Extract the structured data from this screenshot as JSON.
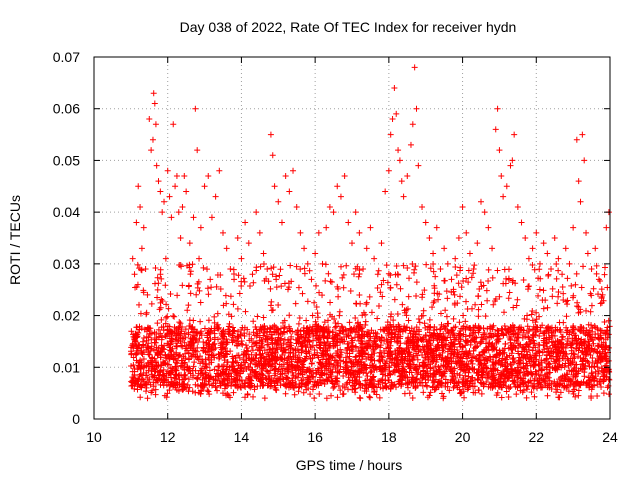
{
  "chart_data": {
    "type": "scatter",
    "title": "Day 038 of 2022, Rate Of TEC Index for receiver hydn",
    "xlabel": "GPS time / hours",
    "ylabel": "ROTI / TECUs",
    "xlim": [
      10,
      24
    ],
    "ylim": [
      0,
      0.07
    ],
    "xticks": [
      10,
      12,
      14,
      16,
      18,
      20,
      22,
      24
    ],
    "yticks": [
      0,
      0.01,
      0.02,
      0.03,
      0.04,
      0.05,
      0.06,
      0.07
    ],
    "xtick_labels": [
      "10",
      "12",
      "14",
      "16",
      "18",
      "20",
      "22",
      "24"
    ],
    "ytick_labels": [
      "0",
      "0.01",
      "0.02",
      "0.03",
      "0.04",
      "0.05",
      "0.06",
      "0.07"
    ],
    "grid": true,
    "marker": "plus",
    "color": "#ff0000",
    "series": [
      {
        "points": [
          [
            11.05,
            0.031
          ],
          [
            11.1,
            0.028
          ],
          [
            11.15,
            0.038
          ],
          [
            11.2,
            0.045
          ],
          [
            11.25,
            0.041
          ],
          [
            11.3,
            0.033
          ],
          [
            11.35,
            0.037
          ],
          [
            11.4,
            0.029
          ],
          [
            11.45,
            0.024
          ],
          [
            11.5,
            0.058
          ],
          [
            11.55,
            0.052
          ],
          [
            11.6,
            0.054
          ],
          [
            11.62,
            0.063
          ],
          [
            11.65,
            0.061
          ],
          [
            11.68,
            0.057
          ],
          [
            11.7,
            0.049
          ],
          [
            11.75,
            0.046
          ],
          [
            11.8,
            0.044
          ],
          [
            11.85,
            0.04
          ],
          [
            11.9,
            0.042
          ],
          [
            11.95,
            0.031
          ],
          [
            12.0,
            0.048
          ],
          [
            12.05,
            0.043
          ],
          [
            12.1,
            0.039
          ],
          [
            12.15,
            0.057
          ],
          [
            12.2,
            0.045
          ],
          [
            12.25,
            0.047
          ],
          [
            12.3,
            0.04
          ],
          [
            12.35,
            0.035
          ],
          [
            12.4,
            0.041
          ],
          [
            12.45,
            0.047
          ],
          [
            12.5,
            0.044
          ],
          [
            12.6,
            0.034
          ],
          [
            12.7,
            0.039
          ],
          [
            12.75,
            0.06
          ],
          [
            12.8,
            0.052
          ],
          [
            12.85,
            0.031
          ],
          [
            12.9,
            0.037
          ],
          [
            13.0,
            0.045
          ],
          [
            13.1,
            0.047
          ],
          [
            13.2,
            0.039
          ],
          [
            13.3,
            0.043
          ],
          [
            13.4,
            0.048
          ],
          [
            13.5,
            0.036
          ],
          [
            13.6,
            0.033
          ],
          [
            13.7,
            0.029
          ],
          [
            13.8,
            0.027
          ],
          [
            13.9,
            0.035
          ],
          [
            14.0,
            0.031
          ],
          [
            14.1,
            0.038
          ],
          [
            14.2,
            0.034
          ],
          [
            14.3,
            0.028
          ],
          [
            14.4,
            0.04
          ],
          [
            14.5,
            0.036
          ],
          [
            14.6,
            0.032
          ],
          [
            14.7,
            0.029
          ],
          [
            14.8,
            0.055
          ],
          [
            14.85,
            0.051
          ],
          [
            14.9,
            0.045
          ],
          [
            15.0,
            0.042
          ],
          [
            15.1,
            0.038
          ],
          [
            15.2,
            0.047
          ],
          [
            15.3,
            0.044
          ],
          [
            15.4,
            0.048
          ],
          [
            15.5,
            0.041
          ],
          [
            15.6,
            0.036
          ],
          [
            15.7,
            0.033
          ],
          [
            15.8,
            0.03
          ],
          [
            15.9,
            0.027
          ],
          [
            16.0,
            0.032
          ],
          [
            16.1,
            0.036
          ],
          [
            16.2,
            0.03
          ],
          [
            16.3,
            0.037
          ],
          [
            16.4,
            0.041
          ],
          [
            16.5,
            0.04
          ],
          [
            16.6,
            0.045
          ],
          [
            16.7,
            0.043
          ],
          [
            16.8,
            0.047
          ],
          [
            16.9,
            0.038
          ],
          [
            17.0,
            0.034
          ],
          [
            17.1,
            0.04
          ],
          [
            17.2,
            0.036
          ],
          [
            17.3,
            0.029
          ],
          [
            17.4,
            0.033
          ],
          [
            17.5,
            0.037
          ],
          [
            17.6,
            0.031
          ],
          [
            17.7,
            0.028
          ],
          [
            17.8,
            0.034
          ],
          [
            17.9,
            0.044
          ],
          [
            18.0,
            0.048
          ],
          [
            18.05,
            0.055
          ],
          [
            18.1,
            0.058
          ],
          [
            18.15,
            0.064
          ],
          [
            18.2,
            0.059
          ],
          [
            18.25,
            0.052
          ],
          [
            18.3,
            0.05
          ],
          [
            18.35,
            0.046
          ],
          [
            18.4,
            0.043
          ],
          [
            18.5,
            0.047
          ],
          [
            18.6,
            0.053
          ],
          [
            18.65,
            0.057
          ],
          [
            18.7,
            0.068
          ],
          [
            18.75,
            0.06
          ],
          [
            18.8,
            0.049
          ],
          [
            18.9,
            0.041
          ],
          [
            19.0,
            0.038
          ],
          [
            19.1,
            0.035
          ],
          [
            19.2,
            0.032
          ],
          [
            19.3,
            0.037
          ],
          [
            19.4,
            0.029
          ],
          [
            19.5,
            0.033
          ],
          [
            19.6,
            0.03
          ],
          [
            19.7,
            0.027
          ],
          [
            19.8,
            0.031
          ],
          [
            19.9,
            0.035
          ],
          [
            20.0,
            0.041
          ],
          [
            20.1,
            0.036
          ],
          [
            20.2,
            0.032
          ],
          [
            20.3,
            0.029
          ],
          [
            20.4,
            0.034
          ],
          [
            20.5,
            0.042
          ],
          [
            20.6,
            0.04
          ],
          [
            20.7,
            0.037
          ],
          [
            20.8,
            0.033
          ],
          [
            20.9,
            0.056
          ],
          [
            20.95,
            0.06
          ],
          [
            21.0,
            0.052
          ],
          [
            21.05,
            0.047
          ],
          [
            21.1,
            0.043
          ],
          [
            21.2,
            0.045
          ],
          [
            21.3,
            0.049
          ],
          [
            21.35,
            0.05
          ],
          [
            21.4,
            0.055
          ],
          [
            21.5,
            0.041
          ],
          [
            21.6,
            0.038
          ],
          [
            21.7,
            0.035
          ],
          [
            21.8,
            0.031
          ],
          [
            21.9,
            0.033
          ],
          [
            22.0,
            0.036
          ],
          [
            22.1,
            0.03
          ],
          [
            22.2,
            0.034
          ],
          [
            22.3,
            0.032
          ],
          [
            22.4,
            0.029
          ],
          [
            22.5,
            0.035
          ],
          [
            22.6,
            0.031
          ],
          [
            22.7,
            0.028
          ],
          [
            22.8,
            0.033
          ],
          [
            22.9,
            0.03
          ],
          [
            23.0,
            0.037
          ],
          [
            23.1,
            0.054
          ],
          [
            23.15,
            0.046
          ],
          [
            23.2,
            0.042
          ],
          [
            23.25,
            0.055
          ],
          [
            23.3,
            0.05
          ],
          [
            23.35,
            0.036
          ],
          [
            23.4,
            0.032
          ],
          [
            23.5,
            0.029
          ],
          [
            23.6,
            0.033
          ],
          [
            23.7,
            0.027
          ],
          [
            23.8,
            0.024
          ],
          [
            23.9,
            0.037
          ],
          [
            23.97,
            0.04
          ]
        ],
        "dense_band": {
          "x_start": 11.0,
          "x_end": 24.0,
          "y_floor": 0.004,
          "y_core": [
            0.006,
            0.018
          ],
          "y_spread_max": 0.03,
          "count": 4200
        }
      }
    ]
  }
}
